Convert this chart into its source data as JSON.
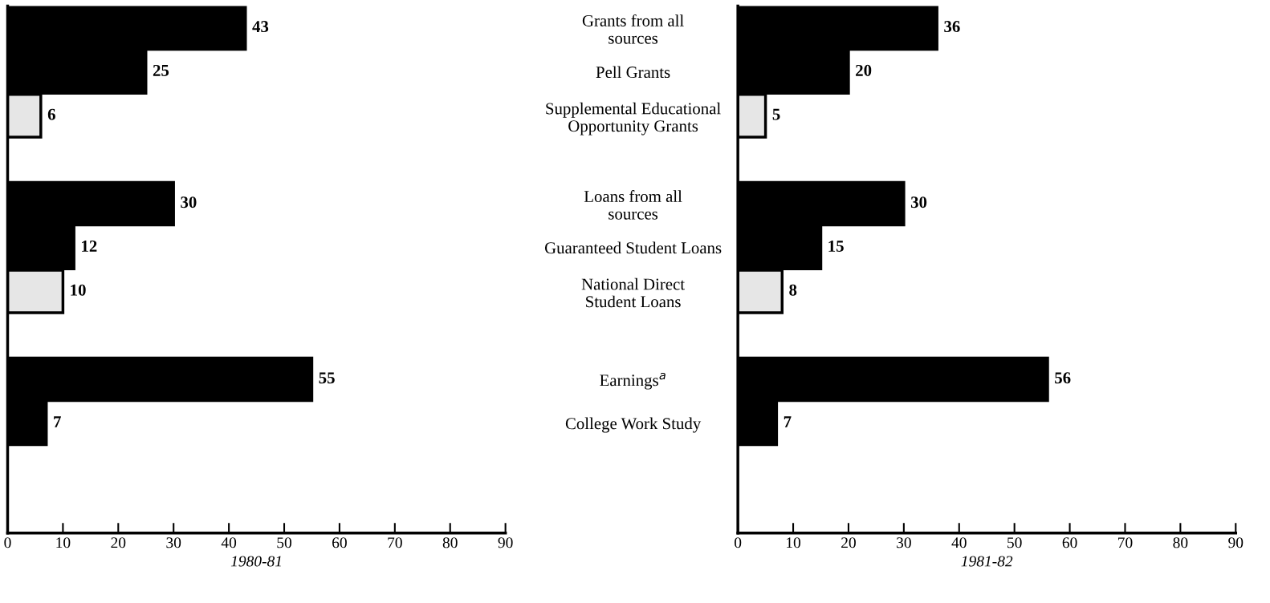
{
  "chart_data": [
    {
      "type": "bar",
      "orientation": "horizontal",
      "xlabel": "1980-81",
      "categories": [
        null,
        null,
        null,
        null,
        null,
        null,
        null,
        null,
        null,
        null,
        null,
        null
      ],
      "values": [
        43,
        25,
        6,
        null,
        30,
        12,
        10,
        null,
        55,
        7,
        null,
        null
      ],
      "colors": [
        "#000000",
        "#000000",
        "#e6e6e6",
        null,
        "#000000",
        "#000000",
        "#e6e6e6",
        null,
        "#000000",
        "#000000",
        null,
        null
      ],
      "xlim": [
        0,
        90
      ],
      "xticks": [
        0,
        10,
        20,
        30,
        40,
        50,
        60,
        70,
        80,
        90
      ],
      "data_labels": true,
      "grid": false,
      "legend": false,
      "tick_labels": "x"
    },
    {
      "type": "bar",
      "orientation": "horizontal",
      "xlabel": "1981-82",
      "categories": [
        "Grants from all\nsources",
        "Pell Grants",
        "Supplemental Educational\nOpportunity Grants",
        null,
        "Loans from all\nsources",
        "Guaranteed Student Loans",
        "National Direct\nStudent Loans",
        null,
        "Earnings$^{a}$",
        "College Work Study",
        null,
        null
      ],
      "values": [
        36,
        20,
        5,
        null,
        30,
        15,
        8,
        null,
        56,
        7,
        null,
        null
      ],
      "colors": [
        "#000000",
        "#000000",
        "#e6e6e6",
        null,
        "#000000",
        "#000000",
        "#e6e6e6",
        null,
        "#000000",
        "#000000",
        null,
        null
      ],
      "xlim": [
        0,
        90
      ],
      "xticks": [
        0,
        10,
        20,
        30,
        40,
        50,
        60,
        70,
        80,
        90
      ],
      "data_labels": true,
      "grid": false,
      "legend": false
    }
  ]
}
